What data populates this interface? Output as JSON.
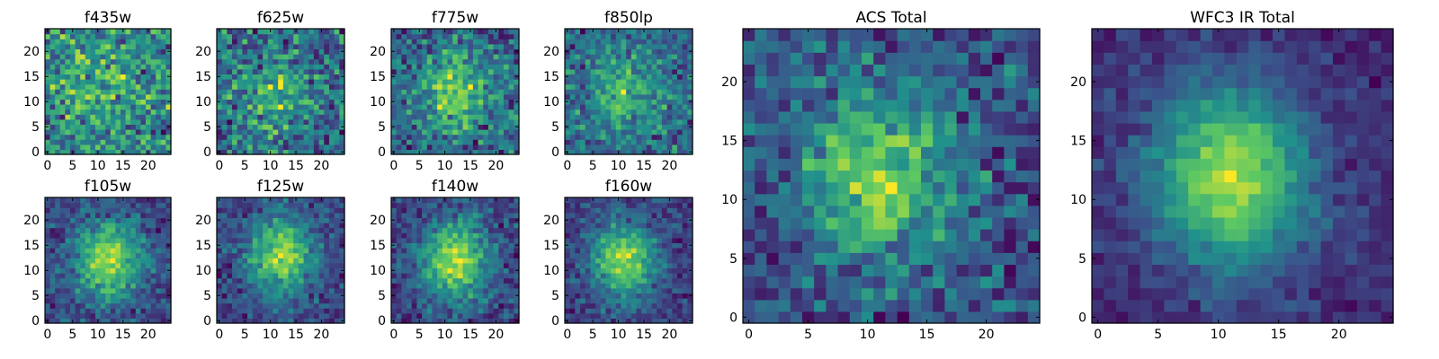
{
  "colormap": [
    "#440154",
    "#3b528b",
    "#21918c",
    "#5ec962",
    "#fde725"
  ],
  "chart_data": [
    {
      "type": "heatmap",
      "title": "f435w",
      "grid": [
        25,
        25
      ],
      "colormap": "viridis",
      "peak": [
        10,
        12
      ],
      "contrast": 0.15,
      "noise": 0.5,
      "seed": 11,
      "xticks": [
        0,
        5,
        10,
        15,
        20
      ],
      "yticks": [
        0,
        5,
        10,
        15,
        20
      ],
      "xlim": [
        0,
        24
      ],
      "ylim": [
        0,
        24
      ]
    },
    {
      "type": "heatmap",
      "title": "f625w",
      "grid": [
        25,
        25
      ],
      "colormap": "viridis",
      "peak": [
        11,
        12
      ],
      "contrast": 0.2,
      "noise": 0.48,
      "seed": 23,
      "xticks": [
        0,
        5,
        10,
        15,
        20
      ],
      "yticks": [
        0,
        5,
        10,
        15,
        20
      ],
      "xlim": [
        0,
        24
      ],
      "ylim": [
        0,
        24
      ]
    },
    {
      "type": "heatmap",
      "title": "f775w",
      "grid": [
        25,
        25
      ],
      "colormap": "viridis",
      "peak": [
        12,
        12
      ],
      "contrast": 0.35,
      "noise": 0.42,
      "seed": 37,
      "xticks": [
        0,
        5,
        10,
        15,
        20
      ],
      "yticks": [
        0,
        5,
        10,
        15,
        20
      ],
      "xlim": [
        0,
        24
      ],
      "ylim": [
        0,
        24
      ]
    },
    {
      "type": "heatmap",
      "title": "f850lp",
      "grid": [
        25,
        25
      ],
      "colormap": "viridis",
      "peak": [
        11,
        12
      ],
      "contrast": 0.3,
      "noise": 0.45,
      "seed": 41,
      "xticks": [
        0,
        5,
        10,
        15,
        20
      ],
      "yticks": [
        0,
        5,
        10,
        15,
        20
      ],
      "xlim": [
        0,
        24
      ],
      "ylim": [
        0,
        24
      ]
    },
    {
      "type": "heatmap",
      "title": "f105w",
      "grid": [
        25,
        25
      ],
      "colormap": "viridis",
      "peak": [
        12,
        12
      ],
      "contrast": 0.55,
      "noise": 0.3,
      "seed": 53,
      "xticks": [
        0,
        5,
        10,
        15,
        20
      ],
      "yticks": [
        0,
        5,
        10,
        15,
        20
      ],
      "xlim": [
        0,
        24
      ],
      "ylim": [
        0,
        24
      ]
    },
    {
      "type": "heatmap",
      "title": "f125w",
      "grid": [
        25,
        25
      ],
      "colormap": "viridis",
      "peak": [
        12,
        13
      ],
      "contrast": 0.55,
      "noise": 0.3,
      "seed": 67,
      "xticks": [
        0,
        5,
        10,
        15,
        20
      ],
      "yticks": [
        0,
        5,
        10,
        15,
        20
      ],
      "xlim": [
        0,
        24
      ],
      "ylim": [
        0,
        24
      ]
    },
    {
      "type": "heatmap",
      "title": "f140w",
      "grid": [
        25,
        25
      ],
      "colormap": "viridis",
      "peak": [
        12,
        12
      ],
      "contrast": 0.55,
      "noise": 0.3,
      "seed": 79,
      "xticks": [
        0,
        5,
        10,
        15,
        20
      ],
      "yticks": [
        0,
        5,
        10,
        15,
        20
      ],
      "xlim": [
        0,
        24
      ],
      "ylim": [
        0,
        24
      ]
    },
    {
      "type": "heatmap",
      "title": "f160w",
      "grid": [
        25,
        25
      ],
      "colormap": "viridis",
      "peak": [
        11,
        12
      ],
      "contrast": 0.6,
      "noise": 0.28,
      "seed": 97,
      "xticks": [
        0,
        5,
        10,
        15,
        20
      ],
      "yticks": [
        0,
        5,
        10,
        15,
        20
      ],
      "xlim": [
        0,
        24
      ],
      "ylim": [
        0,
        24
      ]
    },
    {
      "type": "heatmap",
      "title": "ACS Total",
      "grid": [
        25,
        25
      ],
      "colormap": "viridis",
      "peak": [
        11,
        12
      ],
      "contrast": 0.35,
      "noise": 0.32,
      "seed": 101,
      "xticks": [
        0,
        5,
        10,
        15,
        20
      ],
      "yticks": [
        0,
        5,
        10,
        15,
        20
      ],
      "xlim": [
        0,
        24
      ],
      "ylim": [
        0,
        24
      ]
    },
    {
      "type": "heatmap",
      "title": "WFC3 IR Total",
      "grid": [
        25,
        25
      ],
      "colormap": "viridis",
      "peak": [
        11,
        12
      ],
      "contrast": 0.75,
      "noise": 0.2,
      "seed": 131,
      "xticks": [
        0,
        5,
        10,
        15,
        20
      ],
      "yticks": [
        0,
        5,
        10,
        15,
        20
      ],
      "xlim": [
        0,
        24
      ],
      "ylim": [
        0,
        24
      ]
    }
  ]
}
